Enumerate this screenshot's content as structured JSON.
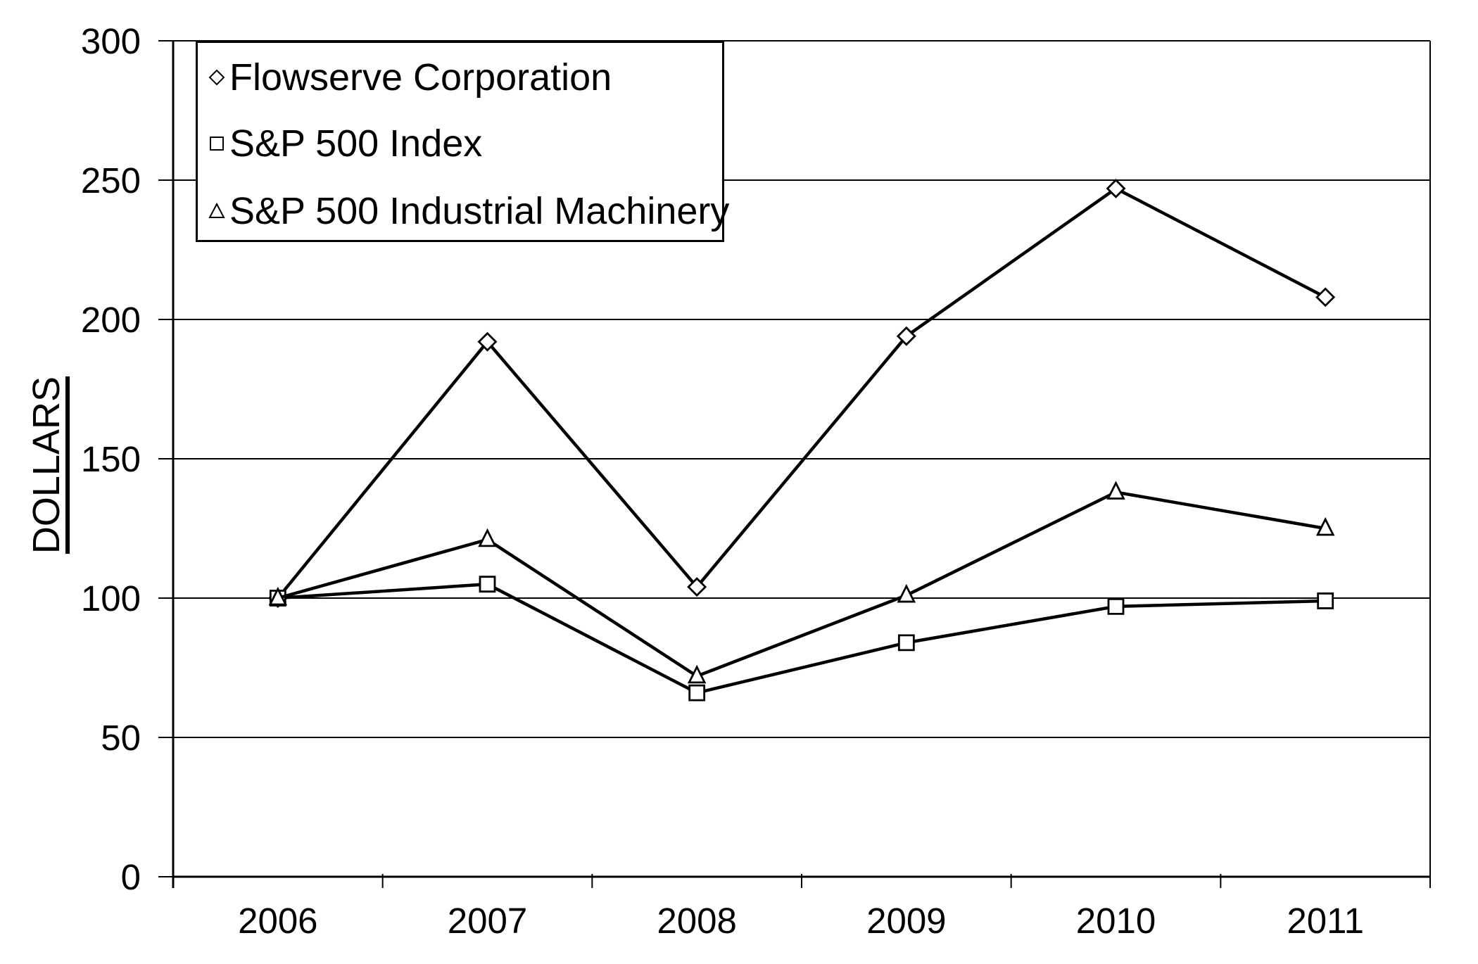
{
  "chart_data": {
    "type": "line",
    "title": "",
    "xlabel": "",
    "ylabel": "DOLLARS",
    "categories": [
      "2006",
      "2007",
      "2008",
      "2009",
      "2010",
      "2011"
    ],
    "series": [
      {
        "name": "Flowserve Corporation",
        "marker": "diamond",
        "values": [
          100,
          192,
          104,
          194,
          247,
          208
        ]
      },
      {
        "name": "S&P 500 Index",
        "marker": "square",
        "values": [
          100,
          105,
          66,
          84,
          97,
          99
        ]
      },
      {
        "name": "S&P 500 Industrial Machinery",
        "marker": "triangle",
        "values": [
          100,
          121,
          72,
          101,
          138,
          125
        ]
      }
    ],
    "ylim": [
      0,
      300
    ],
    "y_ticks": [
      0,
      50,
      100,
      150,
      200,
      250,
      300
    ],
    "grid": "horizontal",
    "legend_position": "top-left",
    "line_color": "#000000",
    "marker_fill": "#ffffff",
    "background": "#ffffff"
  }
}
